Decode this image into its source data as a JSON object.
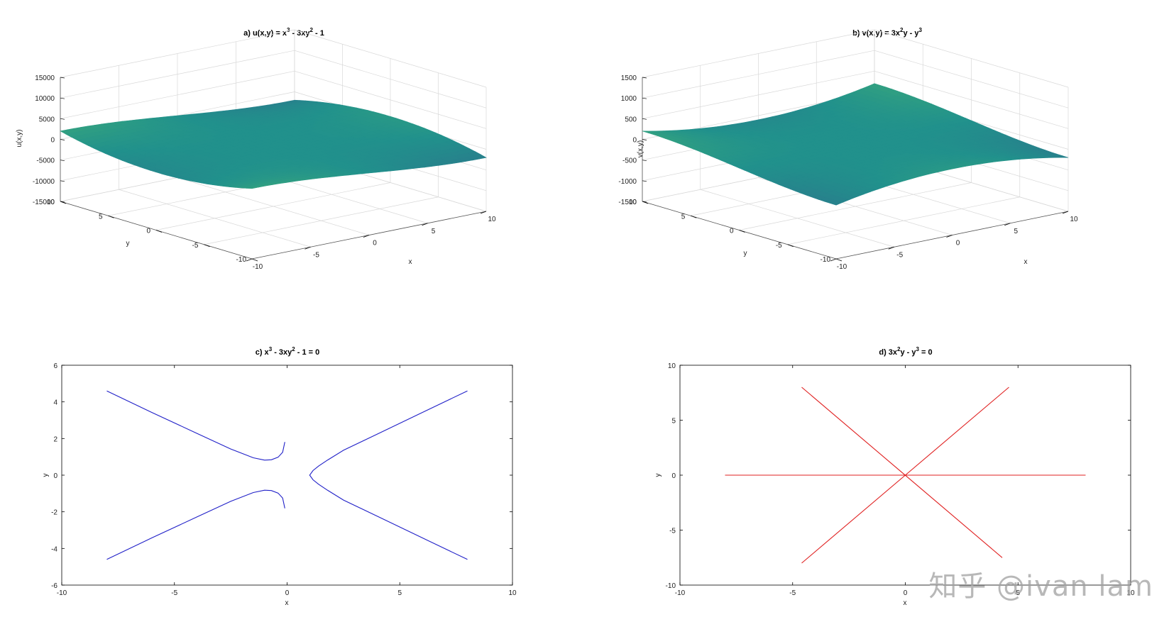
{
  "watermark": "知乎 @ivan lam",
  "colors": {
    "curve_c": "#2020c8",
    "curve_d": "#e02020",
    "viridis_low": "#440154",
    "viridis_mid": "#21908d",
    "viridis_high": "#fde725"
  },
  "chart_data": [
    {
      "id": "a",
      "type": "surface3d",
      "title_main": "a) u(x,y) = x",
      "title_sup1": "3",
      "title_mid": " - 3xy",
      "title_sup2": "2",
      "title_end": " - 1",
      "function": "x^3 - 3xy^2 - 1",
      "xlabel": "x",
      "ylabel": "y",
      "zlabel": "u(x,y)",
      "xlim": [
        -10,
        10
      ],
      "ylim": [
        -10,
        10
      ],
      "zlim": [
        -15000,
        15000
      ],
      "xticks": [
        "-10",
        "-5",
        "0",
        "5",
        "10"
      ],
      "yticks": [
        "-10",
        "-5",
        "0",
        "5",
        "10"
      ],
      "zticks": [
        "-15000",
        "-10000",
        "-5000",
        "0",
        "5000",
        "10000",
        "15000"
      ],
      "colormap": "viridis",
      "grid": true
    },
    {
      "id": "b",
      "type": "surface3d",
      "title_main": "b) v(x,y) = 3x",
      "title_sup1": "2",
      "title_mid": "y - y",
      "title_sup2": "3",
      "title_end": "",
      "function": "3x^2y - y^3",
      "xlabel": "x",
      "ylabel": "y",
      "zlabel": "v(x,y)",
      "xlim": [
        -10,
        10
      ],
      "ylim": [
        -10,
        10
      ],
      "zlim": [
        -1500,
        1500
      ],
      "xticks": [
        "-10",
        "-5",
        "0",
        "5",
        "10"
      ],
      "yticks": [
        "-10",
        "-5",
        "0",
        "5",
        "10"
      ],
      "zticks": [
        "-1500",
        "-1000",
        "-500",
        "0",
        "500",
        "1000",
        "1500"
      ],
      "colormap": "viridis",
      "grid": true
    },
    {
      "id": "c",
      "type": "line",
      "title_main": "c) x",
      "title_sup1": "3",
      "title_mid": " - 3xy",
      "title_sup2": "2",
      "title_end": " - 1 = 0",
      "xlabel": "x",
      "ylabel": "y",
      "xlim": [
        -10,
        10
      ],
      "ylim": [
        -6,
        6
      ],
      "xticks": [
        "-10",
        "-5",
        "0",
        "5",
        "10"
      ],
      "yticks": [
        "-6",
        "-4",
        "-2",
        "0",
        "2",
        "4",
        "6"
      ],
      "grid": false,
      "series": [
        {
          "points": [
            [
              -8,
              4.6
            ],
            [
              -6,
              3.42
            ],
            [
              -4,
              2.28
            ],
            [
              -2.5,
              1.43
            ],
            [
              -1.5,
              0.95
            ],
            [
              -1,
              0.82
            ],
            [
              -0.7,
              0.84
            ],
            [
              -0.4,
              0.98
            ],
            [
              -0.2,
              1.25
            ],
            [
              -0.1,
              1.81
            ]
          ]
        },
        {
          "points": [
            [
              -8,
              -4.6
            ],
            [
              -6,
              -3.42
            ],
            [
              -4,
              -2.28
            ],
            [
              -2.5,
              -1.43
            ],
            [
              -1.5,
              -0.95
            ],
            [
              -1,
              -0.82
            ],
            [
              -0.7,
              -0.84
            ],
            [
              -0.4,
              -0.98
            ],
            [
              -0.2,
              -1.25
            ],
            [
              -0.1,
              -1.81
            ]
          ]
        },
        {
          "points": [
            [
              8,
              4.6
            ],
            [
              6,
              3.42
            ],
            [
              4,
              2.24
            ],
            [
              2.5,
              1.36
            ],
            [
              1.8,
              0.83
            ],
            [
              1.4,
              0.5
            ],
            [
              1.15,
              0.25
            ],
            [
              1,
              0
            ],
            [
              1.15,
              -0.25
            ],
            [
              1.4,
              -0.5
            ],
            [
              1.8,
              -0.83
            ],
            [
              2.5,
              -1.36
            ],
            [
              4,
              -2.24
            ],
            [
              6,
              -3.42
            ],
            [
              8,
              -4.6
            ]
          ]
        }
      ]
    },
    {
      "id": "d",
      "type": "line",
      "title_main": "d) 3x",
      "title_sup1": "2",
      "title_mid": "y - y",
      "title_sup2": "3",
      "title_end": " = 0",
      "xlabel": "x",
      "ylabel": "y",
      "xlim": [
        -10,
        10
      ],
      "ylim": [
        -10,
        10
      ],
      "xticks": [
        "-10",
        "-5",
        "0",
        "5",
        "10"
      ],
      "yticks": [
        "-10",
        "-5",
        "0",
        "5",
        "10"
      ],
      "grid": false,
      "series": [
        {
          "points": [
            [
              -8,
              0
            ],
            [
              8,
              0
            ]
          ]
        },
        {
          "points": [
            [
              -4.6,
              -8
            ],
            [
              4.6,
              8
            ]
          ]
        },
        {
          "points": [
            [
              -4.6,
              8
            ],
            [
              4.3,
              -7.5
            ]
          ]
        }
      ]
    }
  ]
}
